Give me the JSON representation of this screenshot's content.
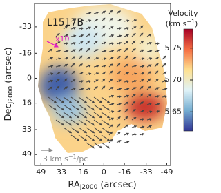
{
  "chart_data": {
    "type": "velocity-map",
    "title": "L1517B",
    "xlabel": {
      "main": "RA",
      "sub": "J2000",
      "unit": " (arcsec)"
    },
    "ylabel": {
      "main": "Dec",
      "sub": "J2000",
      "unit": " (arcsec)"
    },
    "xlim": [
      54,
      -52
    ],
    "xticks": [
      49,
      33,
      16,
      0,
      -16,
      -33,
      -49
    ],
    "ylim": [
      56,
      -48
    ],
    "yticks": [
      -33,
      -16,
      0,
      16,
      33,
      49
    ],
    "colorbar": {
      "label": "Velocity",
      "unit_main": "(km s",
      "unit_exp": "−1",
      "unit_close": ")",
      "clim": [
        5.62,
        5.78
      ],
      "ticks": [
        5.65,
        {
          "value": 5.7,
          "label": "5.70"
        },
        5.75
      ],
      "colors": [
        "#313695",
        "#74add1",
        "#e0f3f8",
        "#fee090",
        "#f46d43",
        "#a50026"
      ]
    },
    "scale_arrow": {
      "label": "x10",
      "color": "#e020c0"
    },
    "reference_arrow": {
      "value": "3",
      "unit_main": " km s",
      "unit_exp": "−1",
      "unit_rest": "/pc",
      "color": "#888888"
    }
  }
}
